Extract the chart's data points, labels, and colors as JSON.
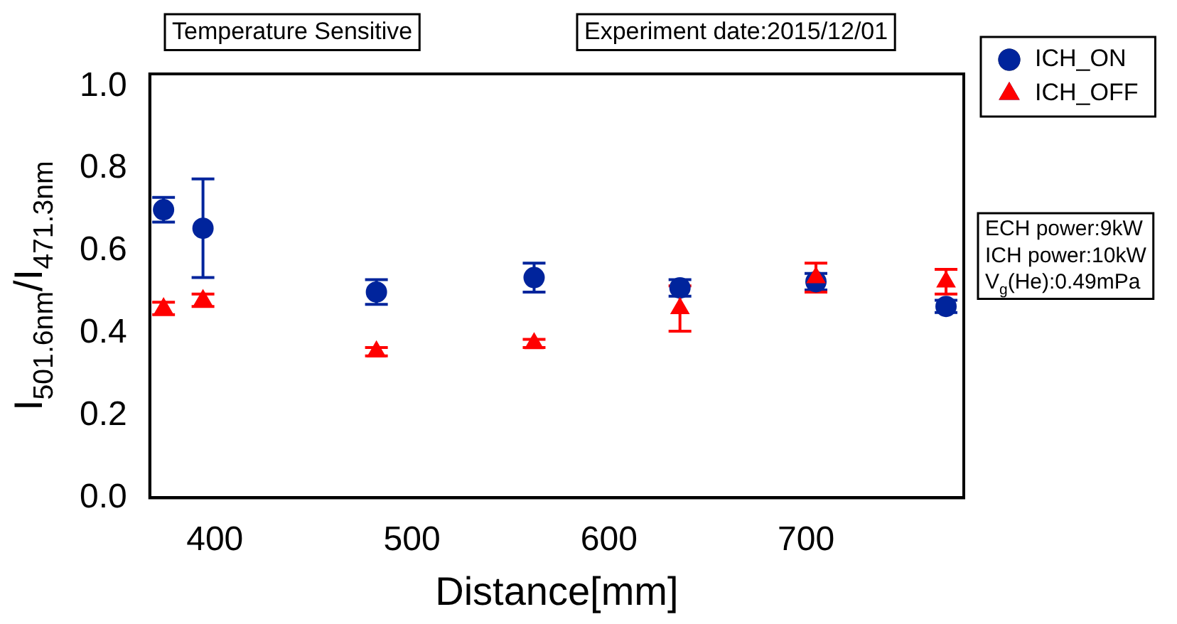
{
  "chart_data": {
    "type": "scatter",
    "xlabel": "Distance[mm]",
    "ylabel": "I$_{501.6nm}$/I$_{471.3nm}$",
    "xlim": [
      367,
      780
    ],
    "xticks": [
      400,
      500,
      600,
      700
    ],
    "ylim": [
      0,
      1.03
    ],
    "yticks": [
      {
        "value": 0,
        "label": "0.0"
      },
      0.2,
      0.4,
      0.6,
      0.8,
      {
        "value": 1,
        "label": "1.0"
      }
    ],
    "grid": false,
    "legend": "top right",
    "annotations": [
      "Temperature Sensitive",
      "Experiment date:2015/12/01",
      "ECH power:9kW\nICH power:10kW\nV$_{g}$(He):0.49mPa"
    ],
    "series": [
      {
        "name": "ICH_ON",
        "color": "#00249c",
        "marker": "circle",
        "x": [
          374,
          394,
          482,
          562,
          636,
          705,
          771
        ],
        "values": [
          0.7,
          0.655,
          0.5,
          0.535,
          0.51,
          0.525,
          0.465
        ],
        "errors": [
          0.03,
          0.12,
          0.03,
          0.035,
          0.02,
          0.02,
          0.015
        ]
      },
      {
        "name": "ICH_OFF",
        "color": "#ff0000",
        "marker": "triangle",
        "x": [
          374,
          394,
          482,
          562,
          636,
          705,
          771
        ],
        "values": [
          0.46,
          0.48,
          0.355,
          0.375,
          0.46,
          0.535,
          0.525
        ],
        "errors": [
          0.015,
          0.015,
          0.01,
          0.01,
          0.055,
          0.035,
          0.03
        ]
      }
    ]
  }
}
